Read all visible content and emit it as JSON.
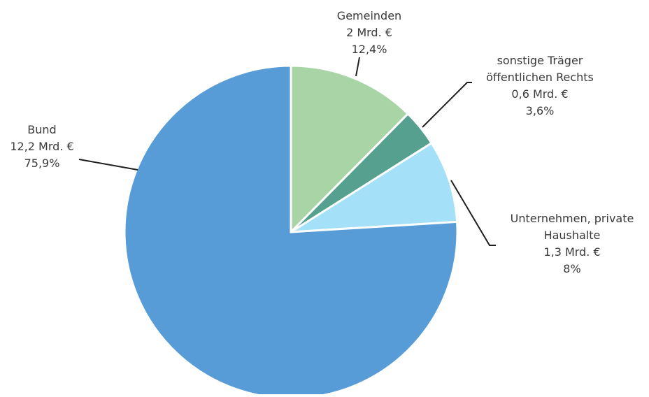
{
  "chart_data": {
    "type": "pie",
    "title": "",
    "slices": [
      {
        "label": "Gemeinden",
        "amount": "2 Mrd. €",
        "percent_label": "12,4%",
        "value": 12.4,
        "color": "#a9d5a6"
      },
      {
        "label_lines": [
          "sonstige Träger",
          "öffentlichen Rechts"
        ],
        "amount": "0,6 Mrd. €",
        "percent_label": "3,6%",
        "value": 3.6,
        "color": "#55a08e"
      },
      {
        "label_lines": [
          "Unternehmen, private",
          "Haushalte"
        ],
        "amount": "1,3 Mrd. €",
        "percent_label": "8%",
        "value": 8.0,
        "color": "#a4e0f7"
      },
      {
        "label": "Bund",
        "amount": "12,2 Mrd. €",
        "percent_label": "75,9%",
        "value": 75.9,
        "color": "#579cd6"
      }
    ]
  }
}
